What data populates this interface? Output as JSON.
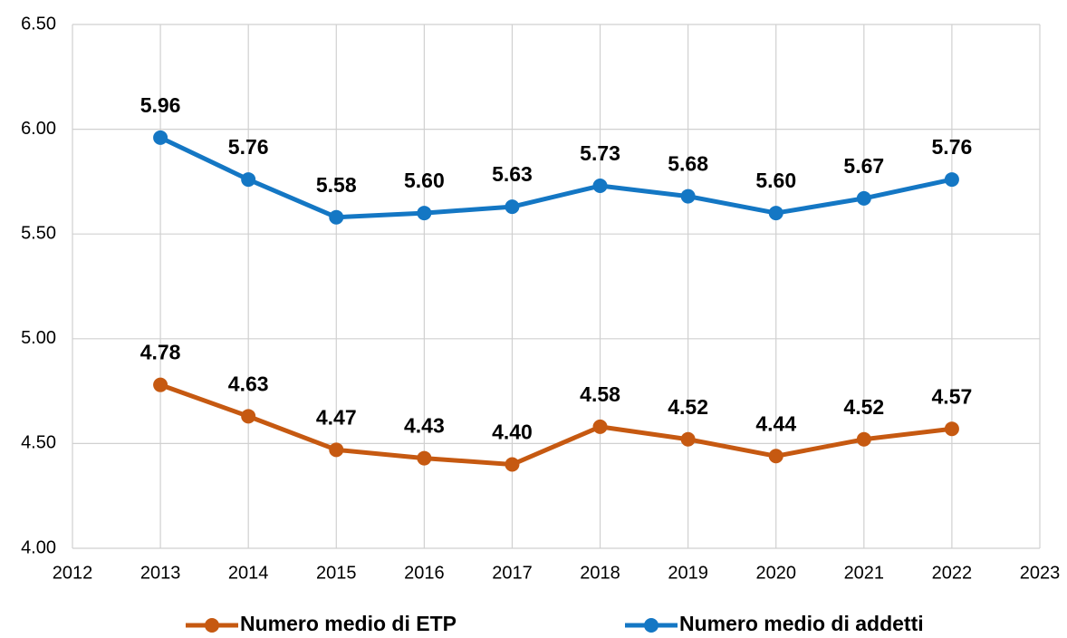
{
  "chart_data": {
    "type": "line",
    "x": [
      2013,
      2014,
      2015,
      2016,
      2017,
      2018,
      2019,
      2020,
      2021,
      2022
    ],
    "series": [
      {
        "name": "Numero medio di ETP",
        "color": "#c65911",
        "values": [
          4.78,
          4.63,
          4.47,
          4.43,
          4.4,
          4.58,
          4.52,
          4.44,
          4.52,
          4.57
        ],
        "value_labels": [
          "4.78",
          "4.63",
          "4.47",
          "4.43",
          "4.40",
          "4.58",
          "4.52",
          "4.44",
          "4.52",
          "4.57"
        ]
      },
      {
        "name": "Numero medio di addetti",
        "color": "#1477c4",
        "values": [
          5.96,
          5.76,
          5.58,
          5.6,
          5.63,
          5.73,
          5.68,
          5.6,
          5.67,
          5.76
        ],
        "value_labels": [
          "5.96",
          "5.76",
          "5.58",
          "5.60",
          "5.63",
          "5.73",
          "5.68",
          "5.60",
          "5.67",
          "5.76"
        ]
      }
    ],
    "xlim": [
      2012,
      2023
    ],
    "xticks": [
      2012,
      2013,
      2014,
      2015,
      2016,
      2017,
      2018,
      2019,
      2020,
      2021,
      2022,
      2023
    ],
    "ylim": [
      4.0,
      6.5
    ],
    "yticks": [
      {
        "value": 4.0,
        "label": "4.00"
      },
      {
        "value": 4.5,
        "label": "4.50"
      },
      {
        "value": 5.0,
        "label": "5.00"
      },
      {
        "value": 5.5,
        "label": "5.50"
      },
      {
        "value": 6.0,
        "label": "6.00"
      },
      {
        "value": 6.5,
        "label": "6.50"
      }
    ],
    "grid": true,
    "legend": "bottom"
  }
}
